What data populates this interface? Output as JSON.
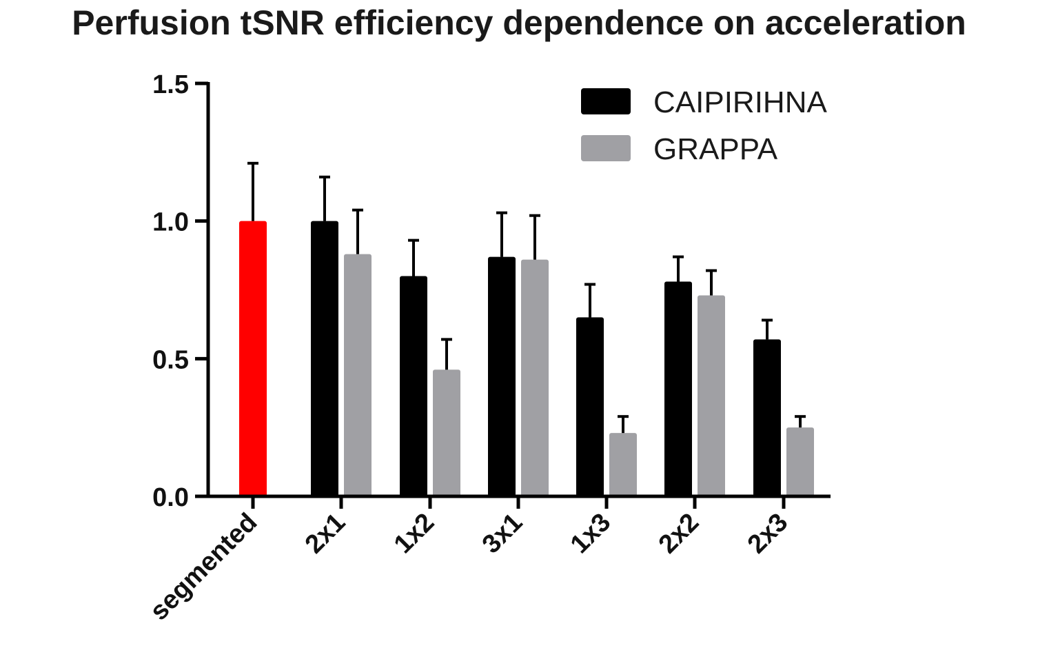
{
  "chart_data": {
    "type": "bar",
    "title": "Perfusion tSNR efficiency dependence on acceleration",
    "xlabel": "",
    "ylabel": "",
    "ylim": [
      0,
      1.5
    ],
    "yticks": [
      "0.0",
      "0.5",
      "1.0",
      "1.5"
    ],
    "ytick_values": [
      0,
      0.5,
      1.0,
      1.5
    ],
    "categories": [
      "segmented",
      "2x1",
      "1x2",
      "3x1",
      "1x3",
      "2x2",
      "2x3"
    ],
    "reference": {
      "name": "segmented",
      "value": 1.0,
      "error": 0.21,
      "color": "#ff0000"
    },
    "series": [
      {
        "name": "CAIPIRIHNA",
        "color": "#000000",
        "values": [
          null,
          1.0,
          0.8,
          0.87,
          0.65,
          0.78,
          0.57
        ],
        "errors": [
          null,
          0.16,
          0.13,
          0.16,
          0.12,
          0.09,
          0.07
        ]
      },
      {
        "name": "GRAPPA",
        "color": "#a0a0a4",
        "values": [
          null,
          0.88,
          0.46,
          0.86,
          0.23,
          0.73,
          0.25
        ],
        "errors": [
          null,
          0.16,
          0.11,
          0.16,
          0.06,
          0.09,
          0.04
        ]
      }
    ],
    "legend_position": "top-right",
    "grid": false
  }
}
